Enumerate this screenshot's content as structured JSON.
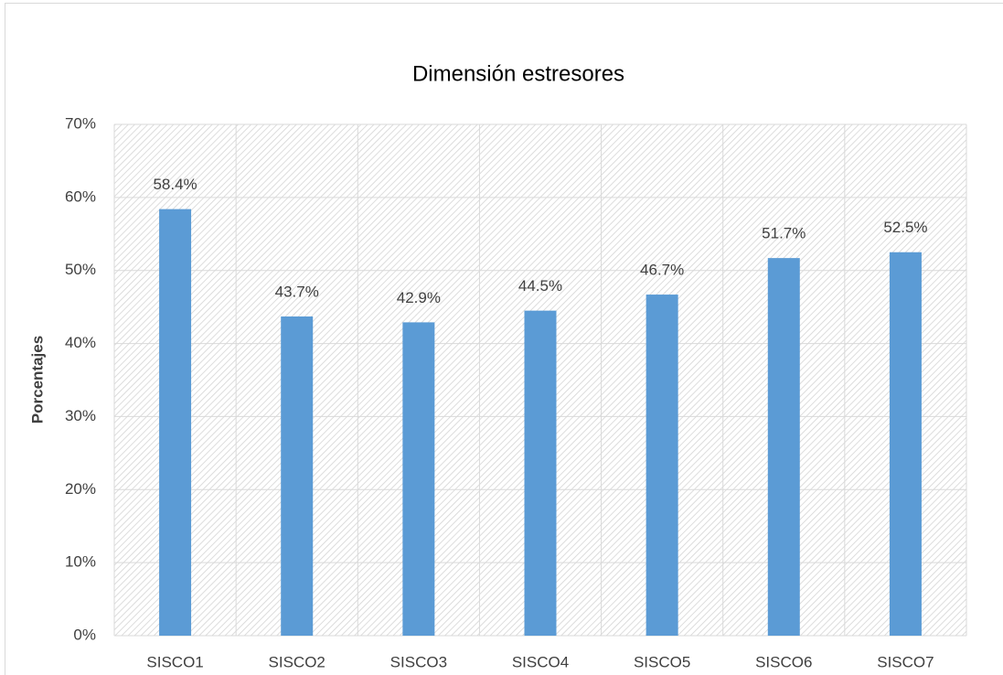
{
  "chart_data": {
    "type": "bar",
    "title": "Dimensión estresores",
    "y_label": "Porcentajes",
    "categories": [
      "SISCO1",
      "SISCO2",
      "SISCO3",
      "SISCO4",
      "SISCO5",
      "SISCO6",
      "SISCO7"
    ],
    "values": [
      58.4,
      43.7,
      42.9,
      44.5,
      46.7,
      51.7,
      52.5
    ],
    "value_labels": [
      "58.4%",
      "43.7%",
      "42.9%",
      "44.5%",
      "46.7%",
      "51.7%",
      "52.5%"
    ],
    "color": "#5b9bd5",
    "ylim": [
      0,
      70
    ],
    "yticks": [
      {
        "value": 0,
        "label": "0%"
      },
      {
        "value": 10,
        "label": "10%"
      },
      {
        "value": 20,
        "label": "20%"
      },
      {
        "value": 30,
        "label": "30%"
      },
      {
        "value": 40,
        "label": "40%"
      },
      {
        "value": 50,
        "label": "50%"
      },
      {
        "value": 60,
        "label": "60%"
      },
      {
        "value": 70,
        "label": "70%"
      }
    ],
    "grid": true
  }
}
